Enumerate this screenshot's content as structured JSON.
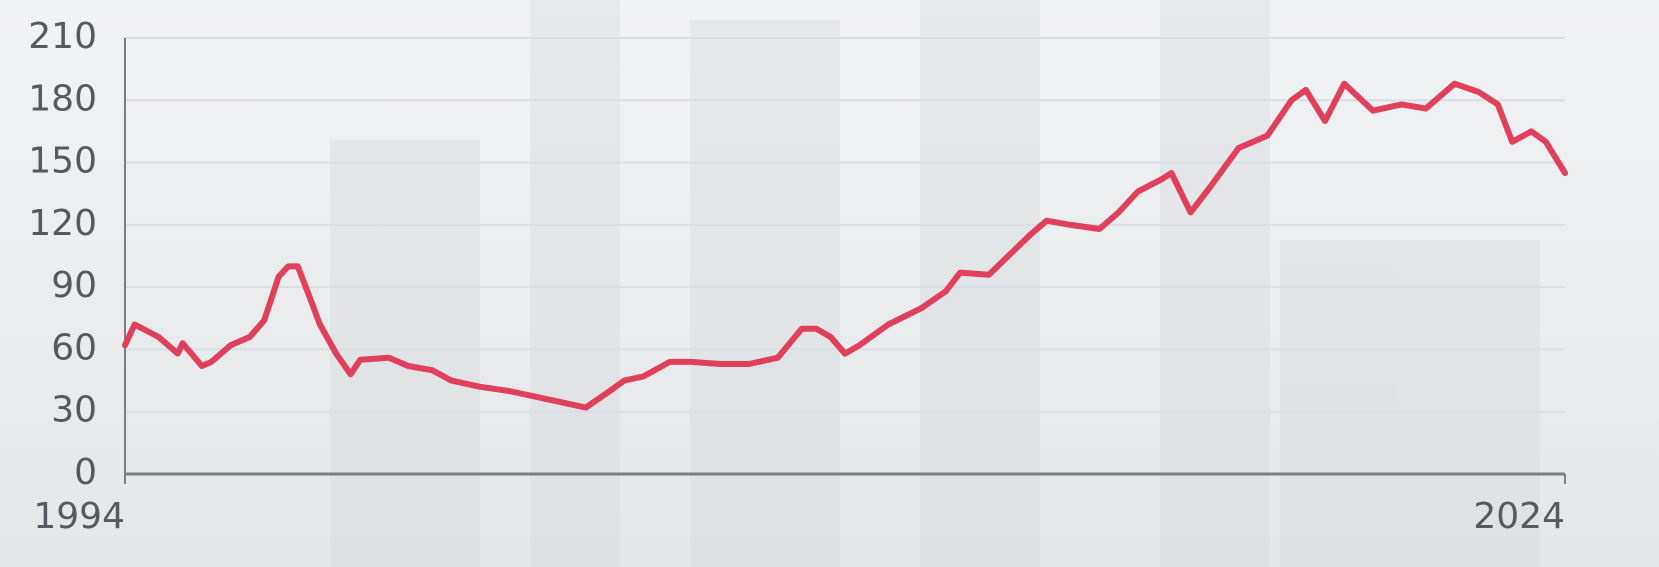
{
  "chart_data": {
    "type": "line",
    "color": "#e0405c",
    "grid": true,
    "xlim": [
      1994,
      2024
    ],
    "xticks": [
      1994,
      2024
    ],
    "ylim": [
      0,
      210
    ],
    "yticks": [
      0,
      30,
      60,
      90,
      120,
      150,
      180,
      210
    ],
    "x": [
      1994.0,
      1994.2,
      1994.7,
      1995.1,
      1995.2,
      1995.6,
      1995.8,
      1996.2,
      1996.6,
      1996.9,
      1997.2,
      1997.4,
      1997.6,
      1997.85,
      1998.06,
      1998.4,
      1998.7,
      1998.9,
      1999.5,
      1999.9,
      2000.4,
      2000.8,
      2001.4,
      2002.0,
      2002.6,
      2003.6,
      2004.1,
      2004.4,
      2004.8,
      2005.35,
      2005.8,
      2006.4,
      2007.0,
      2007.6,
      2008.1,
      2008.4,
      2008.7,
      2009.0,
      2009.3,
      2009.9,
      2010.6,
      2011.1,
      2011.4,
      2012.0,
      2012.4,
      2012.85,
      2013.2,
      2013.7,
      2014.3,
      2014.7,
      2015.1,
      2015.6,
      2015.8,
      2016.2,
      2016.6,
      2017.2,
      2017.8,
      2018.3,
      2018.6,
      2019.0,
      2019.4,
      2020.0,
      2020.6,
      2021.1,
      2021.7,
      2022.2,
      2022.6,
      2022.9,
      2023.3,
      2023.6,
      2024.0
    ],
    "values": [
      62,
      72,
      66,
      58,
      63,
      52,
      54,
      62,
      66,
      74,
      95,
      100,
      100,
      85,
      72,
      58,
      48,
      55,
      56,
      52,
      50,
      45,
      42,
      40,
      37,
      32,
      40,
      45,
      47,
      54,
      54,
      53,
      53,
      56,
      70,
      70,
      66,
      58,
      62,
      72,
      80,
      88,
      97,
      96,
      105,
      115,
      122,
      120,
      118,
      126,
      136,
      142,
      145,
      126,
      138,
      157,
      163,
      180,
      185,
      170,
      188,
      175,
      178,
      176,
      188,
      184,
      178,
      160,
      165,
      160,
      145
    ]
  }
}
